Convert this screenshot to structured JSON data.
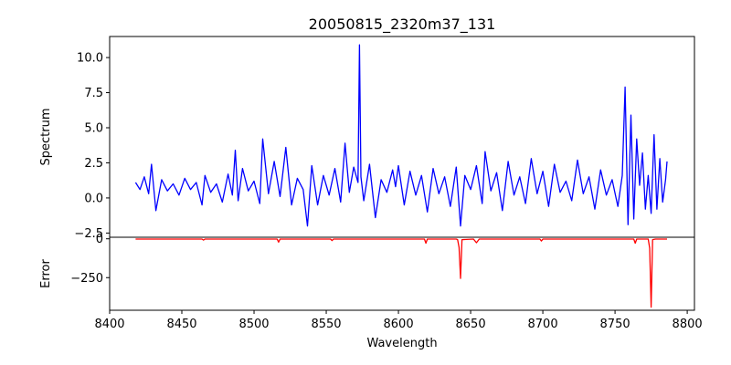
{
  "chart_data": {
    "type": "line",
    "title": "20050815_2320m37_131",
    "xlabel": "Wavelength",
    "xlim": [
      8400,
      8805
    ],
    "xticks": [
      8400,
      8450,
      8500,
      8550,
      8600,
      8650,
      8700,
      8750,
      8800
    ],
    "xtick_labels": [
      "8400",
      "8450",
      "8500",
      "8550",
      "8600",
      "8650",
      "8700",
      "8750",
      "8800"
    ],
    "grid": false,
    "panels": [
      {
        "name": "spectrum",
        "ylabel": "Spectrum",
        "color": "#0000ff",
        "ylim": [
          -2.8,
          11.5
        ],
        "yticks": [
          -2.5,
          0.0,
          2.5,
          5.0,
          7.5,
          10.0
        ],
        "ytick_labels": [
          "−2.5",
          "0.0",
          "2.5",
          "5.0",
          "7.5",
          "10.0"
        ],
        "x": [
          8418,
          8421,
          8424,
          8427,
          8429,
          8432,
          8436,
          8440,
          8444,
          8448,
          8452,
          8456,
          8460,
          8464,
          8466,
          8470,
          8474,
          8478,
          8482,
          8485,
          8487,
          8489,
          8492,
          8496,
          8500,
          8504,
          8506,
          8510,
          8514,
          8518,
          8522,
          8526,
          8530,
          8534,
          8537,
          8540,
          8544,
          8548,
          8552,
          8556,
          8560,
          8563,
          8566,
          8569,
          8572,
          8573,
          8574,
          8576,
          8580,
          8584,
          8588,
          8592,
          8596,
          8598,
          8600,
          8604,
          8608,
          8612,
          8616,
          8620,
          8624,
          8628,
          8632,
          8636,
          8640,
          8643,
          8646,
          8650,
          8654,
          8658,
          8660,
          8664,
          8668,
          8672,
          8676,
          8680,
          8684,
          8688,
          8692,
          8696,
          8700,
          8704,
          8708,
          8712,
          8716,
          8720,
          8724,
          8728,
          8732,
          8736,
          8740,
          8744,
          8748,
          8752,
          8755,
          8757,
          8759,
          8761,
          8763,
          8765,
          8767,
          8769,
          8771,
          8773,
          8775,
          8777,
          8779,
          8781,
          8783,
          8785,
          8786
        ],
        "y": [
          1.1,
          0.6,
          1.5,
          0.3,
          2.4,
          -0.9,
          1.3,
          0.5,
          1.0,
          0.2,
          1.4,
          0.6,
          1.1,
          -0.5,
          1.6,
          0.4,
          1.0,
          -0.3,
          1.7,
          0.2,
          3.4,
          -0.2,
          2.1,
          0.5,
          1.2,
          -0.4,
          4.2,
          0.3,
          2.6,
          0.1,
          3.6,
          -0.5,
          1.4,
          0.6,
          -2.0,
          2.3,
          -0.5,
          1.6,
          0.2,
          2.1,
          -0.3,
          3.9,
          0.4,
          2.2,
          1.1,
          10.9,
          1.5,
          -0.2,
          2.4,
          -1.4,
          1.3,
          0.4,
          2.0,
          0.8,
          2.3,
          -0.5,
          1.9,
          0.2,
          1.6,
          -1.0,
          2.1,
          0.3,
          1.5,
          -0.6,
          2.2,
          -2.0,
          1.6,
          0.6,
          2.3,
          -0.4,
          3.3,
          0.5,
          1.8,
          -0.9,
          2.6,
          0.2,
          1.5,
          -0.4,
          2.8,
          0.3,
          1.9,
          -0.6,
          2.4,
          0.4,
          1.2,
          -0.2,
          2.7,
          0.3,
          1.5,
          -0.8,
          2.0,
          0.2,
          1.3,
          -0.6,
          1.6,
          7.9,
          -1.9,
          5.9,
          -1.5,
          4.2,
          0.9,
          3.2,
          -0.8,
          1.6,
          -1.1,
          4.5,
          -0.8,
          2.8,
          -0.3,
          1.3,
          2.6
        ]
      },
      {
        "name": "error",
        "ylabel": "Error",
        "color": "#ff0000",
        "ylim": [
          -460,
          10
        ],
        "yticks": [
          -250,
          0
        ],
        "ytick_labels": [
          "−250",
          "0"
        ],
        "x": [
          8418,
          8464,
          8465,
          8466,
          8500,
          8516,
          8517,
          8518,
          8530,
          8553,
          8554,
          8555,
          8600,
          8618,
          8619,
          8620,
          8640,
          8641,
          8642,
          8643,
          8644,
          8652,
          8654,
          8656,
          8680,
          8698,
          8699,
          8700,
          8720,
          8750,
          8763,
          8764,
          8765,
          8770,
          8773,
          8774,
          8775,
          8776,
          8778,
          8786
        ],
        "y": [
          -2,
          -2,
          -8,
          -2,
          -2,
          -2,
          -22,
          -2,
          -2,
          -2,
          -12,
          -2,
          -2,
          -2,
          -28,
          -2,
          -2,
          -5,
          -55,
          -255,
          -5,
          -2,
          -25,
          -2,
          -2,
          -2,
          -14,
          -2,
          -2,
          -2,
          -2,
          -28,
          -2,
          -2,
          -2,
          -60,
          -440,
          -5,
          -2,
          -2
        ]
      }
    ]
  }
}
